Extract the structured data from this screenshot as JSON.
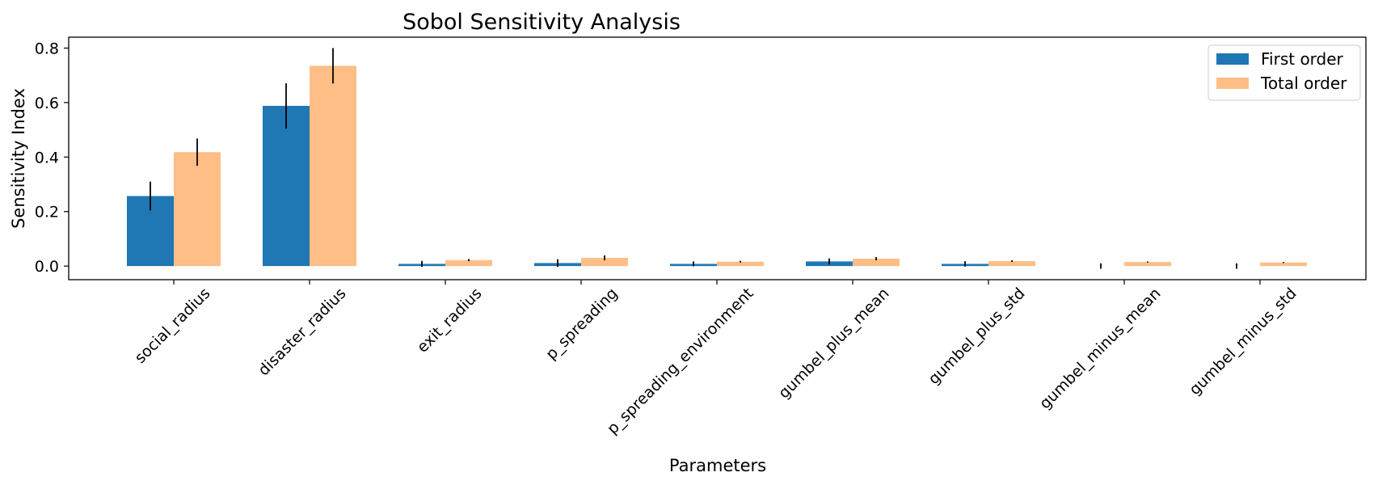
{
  "chart_data": {
    "type": "bar",
    "title": "Sobol Sensitivity Analysis",
    "xlabel": "Parameters",
    "ylabel": "Sensitivity Index",
    "categories": [
      "social_radius",
      "disaster_radius",
      "exit_radius",
      "p_spreading",
      "p_spreading_environment",
      "gumbel_plus_mean",
      "gumbel_plus_std",
      "gumbel_minus_mean",
      "gumbel_minus_std"
    ],
    "series": [
      {
        "name": "First order",
        "color": "#1f77b4",
        "values": [
          0.257,
          0.588,
          0.008,
          0.011,
          0.008,
          0.017,
          0.008,
          0.0,
          0.0
        ],
        "errors": [
          0.053,
          0.083,
          0.011,
          0.014,
          0.009,
          0.011,
          0.01,
          0.01,
          0.01
        ]
      },
      {
        "name": "Total order",
        "color": "#ffbe86",
        "values": [
          0.418,
          0.735,
          0.022,
          0.03,
          0.016,
          0.027,
          0.018,
          0.015,
          0.013
        ],
        "errors": [
          0.05,
          0.065,
          0.004,
          0.009,
          0.003,
          0.006,
          0.003,
          0.002,
          0.002
        ]
      }
    ],
    "yticks": [
      "0.0",
      "0.2",
      "0.4",
      "0.6",
      "0.8"
    ],
    "ylim": [
      -0.05,
      0.84
    ],
    "grid": false,
    "legend_position": "top-right"
  }
}
